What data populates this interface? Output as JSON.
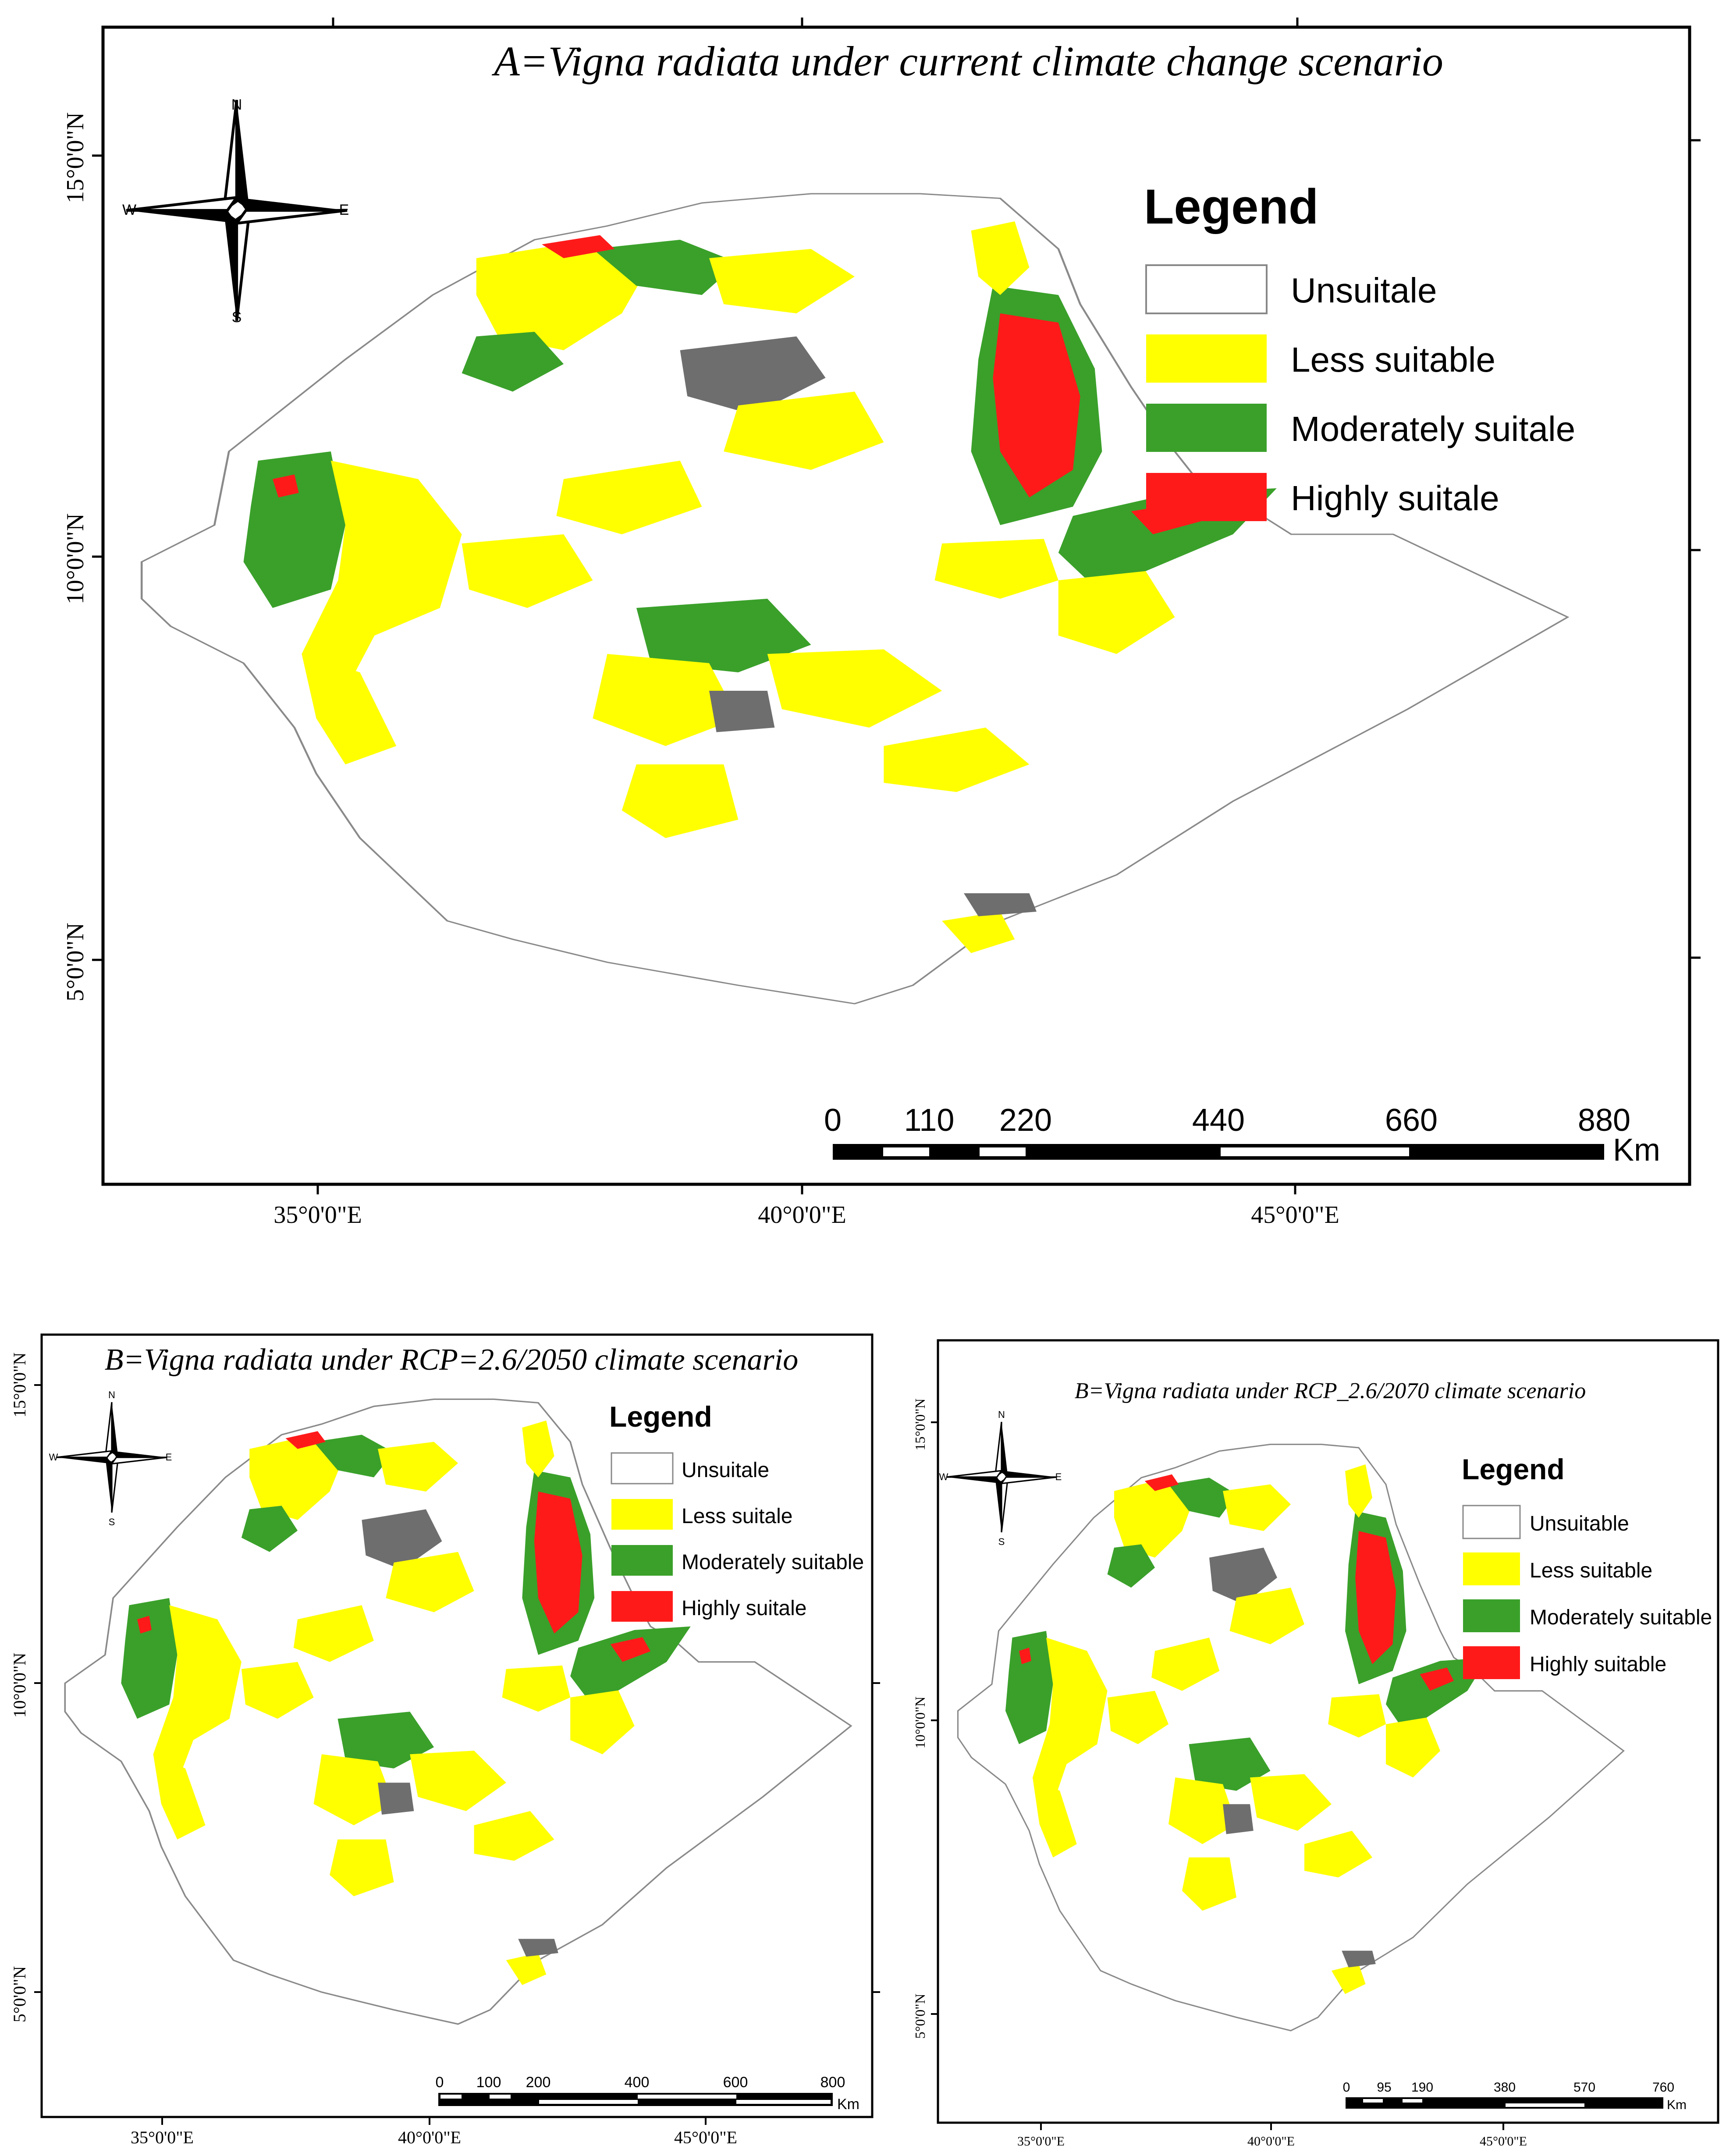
{
  "colors": {
    "unsuitable": "#ffffff",
    "less": "#ffff00",
    "moderate": "#3aa02a",
    "high": "#ff1a1a",
    "grey": "#6e6e6e",
    "border": "#8a8a8a"
  },
  "icons": [
    "north-arrow-icon"
  ],
  "compass": {
    "n": "N",
    "s": "S",
    "e": "E",
    "w": "W"
  },
  "map_a": {
    "title": "A=Vigna radiata under current climate change scenario",
    "legend": {
      "title": "Legend",
      "items": [
        "Unsuitale",
        "Less suitable",
        "Moderately suitale",
        "Highly suitale"
      ]
    },
    "lat_labels": [
      "15°0'0\"N",
      "10°0'0\"N",
      "5°0'0\"N"
    ],
    "lon_labels": [
      "35°0'0\"E",
      "40°0'0\"E",
      "45°0'0\"E"
    ],
    "scalebar": {
      "ticks": [
        "0",
        "110",
        "220",
        "440",
        "660",
        "880"
      ],
      "unit": "Km"
    }
  },
  "map_b": {
    "title": "B=Vigna radiata under RCP=2.6/2050  climate scenario",
    "legend": {
      "title": "Legend",
      "items": [
        "Unsuitale",
        "Less suitale",
        "Moderately suitable",
        "Highly suitale"
      ]
    },
    "lat_labels": [
      "15°0'0\"N",
      "10°0'0\"N",
      "5°0'0\"N"
    ],
    "lon_labels": [
      "35°0'0\"E",
      "40°0'0\"E",
      "45°0'0\"E"
    ],
    "scalebar": {
      "ticks": [
        "0",
        "100",
        "200",
        "400",
        "600",
        "800"
      ],
      "unit": "Km"
    }
  },
  "map_c": {
    "title": "B=Vigna radiata under RCP_2.6/2070 climate scenario",
    "legend": {
      "title": "Legend",
      "items": [
        "Unsuitable",
        "Less suitable",
        "Moderately suitable",
        "Highly suitable"
      ]
    },
    "lat_labels": [
      "15°0'0\"N",
      "10°0'0\"N",
      "5°0'0\"N"
    ],
    "lon_labels": [
      "35°0'0\"E",
      "40°0'0\"E",
      "45°0'0\"E"
    ],
    "scalebar": {
      "ticks": [
        "0",
        "95",
        "190",
        "380",
        "570",
        "760"
      ],
      "unit": "Km"
    }
  }
}
